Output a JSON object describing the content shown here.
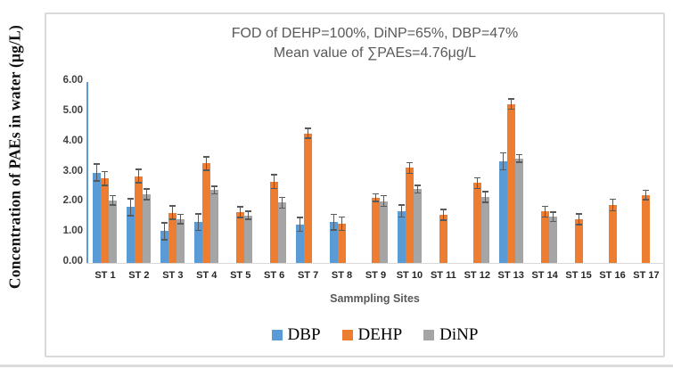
{
  "chart_data": {
    "type": "bar",
    "title_lines": [
      "FOD of DEHP=100%, DiNP=65%, DBP=47%",
      "Mean value of ∑PAEs=4.76μg/L"
    ],
    "xlabel": "Sammpling Sites",
    "ylabel": "Concentration of PAEs in water (μg/L)",
    "ylim": [
      0,
      6
    ],
    "y_ticks": [
      "0.00",
      "1.00",
      "2.00",
      "3.00",
      "4.00",
      "5.00",
      "6.00"
    ],
    "grid": false,
    "legend_position": "bottom",
    "categories": [
      "ST 1",
      "ST 2",
      "ST 3",
      "ST 4",
      "ST 5",
      "ST 6",
      "ST 7",
      "ST 8",
      "ST 9",
      "ST 10",
      "ST 11",
      "ST 12",
      "ST 13",
      "ST 14",
      "ST 15",
      "ST 16",
      "ST 17"
    ],
    "series": [
      {
        "name": "DBP",
        "color": "#5B9BD5",
        "values": [
          3.0,
          1.85,
          1.05,
          1.35,
          null,
          null,
          1.28,
          1.35,
          null,
          1.72,
          null,
          null,
          3.37,
          null,
          null,
          null,
          null
        ],
        "errors": [
          0.3,
          0.3,
          0.3,
          0.3,
          null,
          null,
          0.25,
          0.28,
          null,
          0.22,
          null,
          null,
          0.3,
          null,
          null,
          null,
          null
        ]
      },
      {
        "name": "DEHP",
        "color": "#ED7D31",
        "values": [
          2.8,
          2.88,
          1.67,
          3.3,
          1.68,
          2.7,
          4.3,
          1.3,
          2.17,
          3.15,
          1.6,
          2.65,
          5.27,
          1.7,
          1.45,
          1.92,
          2.25
        ],
        "errors": [
          0.25,
          0.25,
          0.25,
          0.25,
          0.2,
          0.25,
          0.18,
          0.25,
          0.15,
          0.2,
          0.2,
          0.2,
          0.2,
          0.2,
          0.2,
          0.22,
          0.18
        ]
      },
      {
        "name": "DiNP",
        "color": "#A5A5A5",
        "values": [
          2.08,
          2.28,
          1.45,
          2.42,
          1.58,
          2.0,
          null,
          null,
          2.05,
          2.45,
          null,
          2.18,
          3.47,
          1.53,
          null,
          null,
          null
        ],
        "errors": [
          0.18,
          0.2,
          0.18,
          0.15,
          0.15,
          0.2,
          null,
          null,
          0.2,
          0.15,
          null,
          0.2,
          0.15,
          0.18,
          null,
          null,
          null
        ]
      }
    ],
    "axis_line_color": "#5B9BD5",
    "error_bar_color": "#595959",
    "border_color": "#D9D9D9"
  }
}
